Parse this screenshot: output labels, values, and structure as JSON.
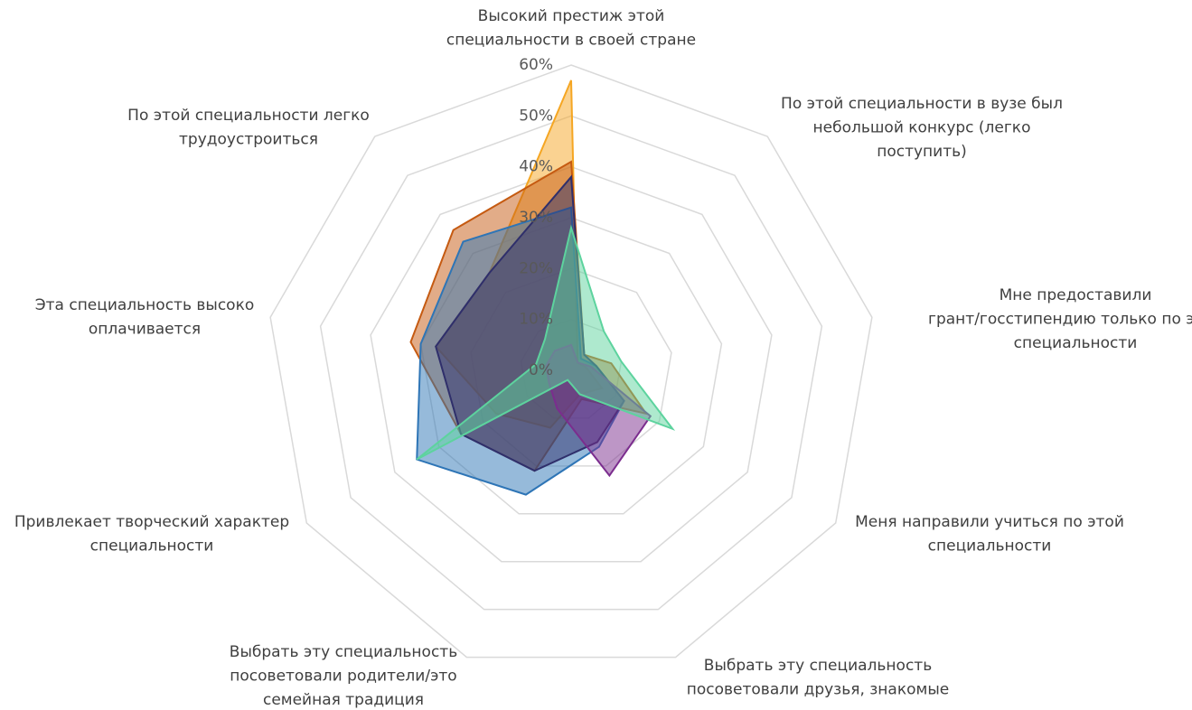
{
  "chart_data": {
    "type": "radar",
    "categories": [
      [
        "Высокий престиж этой",
        "специальности в своей стране"
      ],
      [
        "По этой специальности в вузе был",
        "небольшой конкурс (легко",
        "поступить)"
      ],
      [
        "Мне предоставили",
        "грант/госстипендию только по этой",
        "специальности"
      ],
      [
        "Меня направили учиться по этой",
        "специальности"
      ],
      [
        "Выбрать эту специальность",
        "посоветовали друзья, знакомые"
      ],
      [
        "Выбрать эту специальность",
        "посоветовали родители/это",
        "семейная традиция"
      ],
      [
        "Привлекает творческий характер",
        "специальности"
      ],
      [
        "Эта специальность высоко",
        "оплачивается"
      ],
      [
        "По этой специальности легко",
        "трудоустроиться"
      ]
    ],
    "series": [
      {
        "color": "#f5a623",
        "values": [
          57,
          2,
          3,
          7,
          5,
          12,
          17,
          27,
          25
        ]
      },
      {
        "color": "#c55a11",
        "values": [
          41,
          4,
          8,
          17,
          6,
          21,
          25,
          32,
          36
        ]
      },
      {
        "color": "#2e75b6",
        "values": [
          32,
          3,
          5,
          12,
          16,
          26,
          35,
          30,
          33
        ]
      },
      {
        "color": "#2f2f6b",
        "values": [
          38,
          4,
          5,
          12,
          15,
          21,
          25,
          27,
          25
        ]
      },
      {
        "color": "#7b2d8e",
        "values": [
          5,
          2,
          4,
          18,
          22,
          8,
          5,
          5,
          5
        ]
      },
      {
        "color": "#5dd39e",
        "values": [
          28,
          10,
          10,
          23,
          5,
          2,
          35,
          7,
          8
        ]
      }
    ],
    "ylim": [
      0,
      60
    ],
    "yticks": [
      {
        "value": 0,
        "label": "0%"
      },
      {
        "value": 10,
        "label": "10%"
      },
      {
        "value": 20,
        "label": "20%"
      },
      {
        "value": 30,
        "label": "30%"
      },
      {
        "value": 40,
        "label": "40%"
      },
      {
        "value": 50,
        "label": "50%"
      },
      {
        "value": 60,
        "label": "60%"
      }
    ],
    "grid": true
  }
}
